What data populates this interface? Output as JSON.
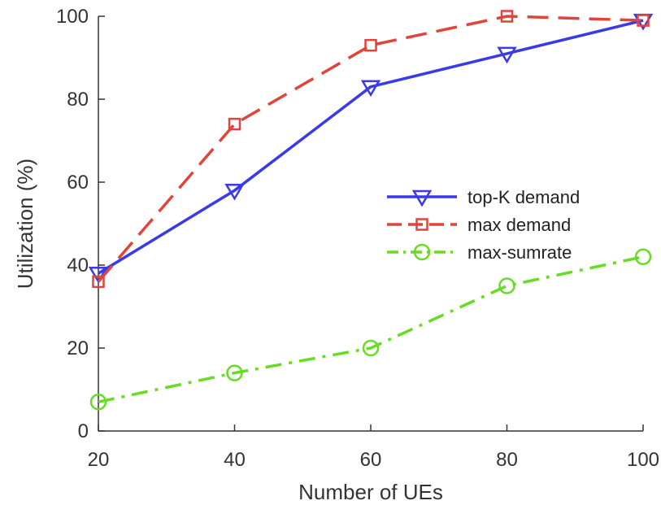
{
  "chart_data": {
    "type": "line",
    "xlabel": "Number of UEs",
    "ylabel": "Utilization (%)",
    "xlim": [
      20,
      100
    ],
    "ylim": [
      0,
      100
    ],
    "xticks": [
      20,
      40,
      60,
      80,
      100
    ],
    "yticks": [
      0,
      20,
      40,
      60,
      80,
      100
    ],
    "grid": false,
    "legend_position": "center-right",
    "x": [
      20,
      40,
      60,
      80,
      100
    ],
    "series": [
      {
        "name": "top-K demand",
        "values": [
          38,
          58,
          83,
          91,
          99
        ],
        "color": "#3a3ae6",
        "marker": "triangle-down",
        "line_style": "solid"
      },
      {
        "name": "max demand",
        "values": [
          36,
          74,
          93,
          100,
          99
        ],
        "color": "#e0443a",
        "marker": "square",
        "line_style": "dashed"
      },
      {
        "name": "max-sumrate",
        "values": [
          7,
          14,
          20,
          35,
          42
        ],
        "color": "#66dd22",
        "marker": "circle",
        "line_style": "dash-dot"
      }
    ]
  }
}
